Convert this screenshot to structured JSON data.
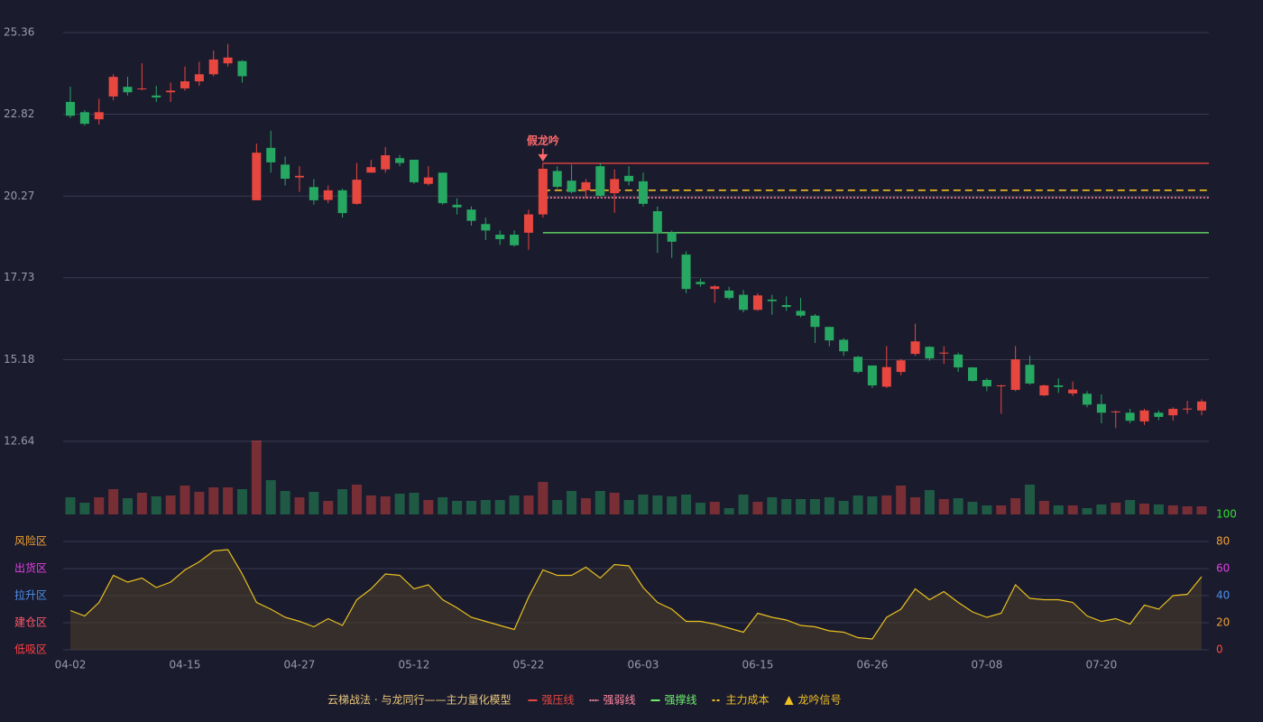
{
  "chart_data": {
    "type": "candlestick",
    "categories": [
      "04-02",
      null,
      null,
      null,
      null,
      null,
      null,
      null,
      "04-15",
      null,
      null,
      null,
      null,
      null,
      null,
      null,
      "04-27",
      null,
      null,
      null,
      null,
      null,
      null,
      null,
      "05-12",
      null,
      null,
      null,
      null,
      null,
      null,
      null,
      "05-22",
      null,
      null,
      null,
      null,
      null,
      null,
      null,
      "06-03",
      null,
      null,
      null,
      null,
      null,
      null,
      null,
      "06-15",
      null,
      null,
      null,
      null,
      null,
      null,
      null,
      "06-26",
      null,
      null,
      null,
      null,
      null,
      null,
      null,
      "07-08",
      null,
      null,
      null,
      null,
      null,
      null,
      null,
      "07-20",
      null,
      null,
      null,
      null,
      null,
      null,
      null
    ],
    "open": [
      23.2,
      22.88,
      22.66,
      23.37,
      23.67,
      23.6,
      23.4,
      23.5,
      23.62,
      23.84,
      24.06,
      24.4,
      24.47,
      20.14,
      21.77,
      21.25,
      20.85,
      20.55,
      20.15,
      20.45,
      20.03,
      21.0,
      21.1,
      21.45,
      21.4,
      20.65,
      21.0,
      20.0,
      19.85,
      19.4,
      19.07,
      19.07,
      19.13,
      19.7,
      21.05,
      20.75,
      20.45,
      21.2,
      20.36,
      20.9,
      20.73,
      19.8,
      19.13,
      18.45,
      17.6,
      17.38,
      17.33,
      17.2,
      16.73,
      17.05,
      16.88,
      16.7,
      16.55,
      16.2,
      15.8,
      15.27,
      15.0,
      14.34,
      14.8,
      15.36,
      15.58,
      15.37,
      15.34,
      14.94,
      14.55,
      14.36,
      14.24,
      15.02,
      14.07,
      14.38,
      14.13,
      14.12,
      13.8,
      13.55,
      13.53,
      13.26,
      13.53,
      13.45,
      13.63,
      13.6
    ],
    "high": [
      23.67,
      22.94,
      23.3,
      24.06,
      23.98,
      24.4,
      23.7,
      23.8,
      24.3,
      24.45,
      24.8,
      25.0,
      24.5,
      21.9,
      22.3,
      21.5,
      21.2,
      20.8,
      20.6,
      20.5,
      21.3,
      21.4,
      21.8,
      21.55,
      21.4,
      21.2,
      21.0,
      20.2,
      19.95,
      19.6,
      19.2,
      19.2,
      19.85,
      21.3,
      21.2,
      21.25,
      20.8,
      21.3,
      21.1,
      21.2,
      21.0,
      19.95,
      19.2,
      18.55,
      17.7,
      17.5,
      17.45,
      17.35,
      17.25,
      17.2,
      17.15,
      17.1,
      16.6,
      16.2,
      15.85,
      15.3,
      15.0,
      15.6,
      15.2,
      16.3,
      15.6,
      15.6,
      15.4,
      14.95,
      14.6,
      14.4,
      15.6,
      15.3,
      14.4,
      14.6,
      14.5,
      14.2,
      14.1,
      13.6,
      13.65,
      13.65,
      13.6,
      13.7,
      13.9,
      13.95
    ],
    "low": [
      22.7,
      22.46,
      22.5,
      23.25,
      23.4,
      23.56,
      23.2,
      23.2,
      23.55,
      23.7,
      24.0,
      24.3,
      23.8,
      20.14,
      21.0,
      20.6,
      20.4,
      20.0,
      20.05,
      19.6,
      20.0,
      21.0,
      21.0,
      21.2,
      20.65,
      20.6,
      20.0,
      19.7,
      19.35,
      18.9,
      18.75,
      18.7,
      18.6,
      19.6,
      20.5,
      20.35,
      20.2,
      20.25,
      19.75,
      20.6,
      19.95,
      18.5,
      18.35,
      17.25,
      17.45,
      16.95,
      17.05,
      16.65,
      16.7,
      16.58,
      16.7,
      16.5,
      15.7,
      15.6,
      15.3,
      14.75,
      14.3,
      14.3,
      14.7,
      15.3,
      15.15,
      15.05,
      14.8,
      14.5,
      14.2,
      13.5,
      14.2,
      14.4,
      14.05,
      14.15,
      14.05,
      13.7,
      13.2,
      13.05,
      13.2,
      13.15,
      13.3,
      13.28,
      13.5,
      13.45
    ],
    "close": [
      22.77,
      22.52,
      22.88,
      23.98,
      23.5,
      23.62,
      23.34,
      23.55,
      23.84,
      24.06,
      24.52,
      24.58,
      24.0,
      21.62,
      21.32,
      20.81,
      20.9,
      20.14,
      20.45,
      19.74,
      20.78,
      21.17,
      21.54,
      21.3,
      20.7,
      20.85,
      20.05,
      19.92,
      19.5,
      19.2,
      18.93,
      18.74,
      19.7,
      21.12,
      20.56,
      20.4,
      20.7,
      20.28,
      20.8,
      20.73,
      20.03,
      19.13,
      18.85,
      17.38,
      17.53,
      17.46,
      17.1,
      16.73,
      17.18,
      17.0,
      16.82,
      16.55,
      16.2,
      15.78,
      15.44,
      14.8,
      14.38,
      14.95,
      15.16,
      15.75,
      15.22,
      15.4,
      14.94,
      14.52,
      14.35,
      14.38,
      15.19,
      14.44,
      14.38,
      14.33,
      14.25,
      13.78,
      13.53,
      13.57,
      13.28,
      13.6,
      13.4,
      13.65,
      13.66,
      13.88
    ],
    "volume": [
      19,
      13,
      19,
      28,
      18,
      24,
      20,
      21,
      32,
      25,
      30,
      30,
      28,
      82,
      38,
      26,
      19,
      25,
      15,
      28,
      33,
      21,
      20,
      23,
      24,
      16,
      19,
      15,
      15,
      16,
      16,
      21,
      21,
      36,
      16,
      26,
      18,
      26,
      24,
      16,
      22,
      21,
      20,
      22,
      13,
      14,
      7,
      22,
      14,
      19,
      17,
      17,
      17,
      19,
      15,
      21,
      20,
      21,
      32,
      19,
      27,
      17,
      18,
      14,
      10,
      10,
      18,
      33,
      15,
      10,
      10,
      7,
      11,
      13,
      16,
      12,
      11,
      10,
      9,
      9
    ],
    "ylim": [
      12.64,
      25.36
    ],
    "yticks": [
      12.64,
      15.18,
      17.73,
      20.27,
      22.82,
      25.36
    ],
    "grid": true,
    "up_color": "#e8473f",
    "down_color": "#26a862",
    "levels": [
      {
        "name": "强压线",
        "value": 21.29,
        "color": "#e8473f",
        "style": "solid"
      },
      {
        "name": "强弱线",
        "value": 20.22,
        "color": "#ff8aa0",
        "style": "dotted"
      },
      {
        "name": "强撑线",
        "value": 19.13,
        "color": "#6cf06c",
        "style": "solid"
      },
      {
        "name": "主力成本",
        "value": 20.45,
        "color": "#f0c020",
        "style": "dashed"
      }
    ],
    "level_start": 33,
    "signal": {
      "name": "龙吟信号",
      "color": "#f0c020",
      "events": [
        {
          "label": "假龙吟",
          "at": 33,
          "color": "#ff6a6a"
        }
      ]
    },
    "legend_title": "云梯战法 · 与龙同行——主力量化模型",
    "indicator": {
      "values": [
        29,
        25,
        35,
        55,
        50,
        53,
        46,
        50,
        59,
        65,
        73,
        74,
        56,
        35,
        30,
        24,
        21,
        17,
        23,
        18,
        37,
        45,
        56,
        55,
        45,
        48,
        37,
        31,
        24,
        21,
        18,
        15,
        39,
        59,
        55,
        55,
        61,
        53,
        63,
        62,
        46,
        35,
        30,
        21,
        21,
        19,
        16,
        13,
        27,
        24,
        22,
        18,
        17,
        14,
        13,
        9,
        8,
        24,
        30,
        45,
        37,
        43,
        35,
        28,
        24,
        27,
        48,
        38,
        37,
        37,
        35,
        25,
        21,
        23,
        19,
        33,
        30,
        40,
        41,
        54
      ],
      "color": "#e8c020",
      "ylim": [
        0,
        100
      ],
      "yticks": [
        0,
        20,
        40,
        60,
        80,
        100
      ],
      "ytick_colors": [
        "#ff4a3a",
        "#f0a030",
        "#4a90e8",
        "#e040e0",
        "#f0a030",
        "#30e030"
      ],
      "zones": [
        {
          "label": "风险区",
          "value": 80,
          "color": "#f0a030"
        },
        {
          "label": "出货区",
          "value": 60,
          "color": "#e040e0"
        },
        {
          "label": "拉升区",
          "value": 40,
          "color": "#4a90e8"
        },
        {
          "label": "建仓区",
          "value": 20,
          "color": "#ff5a6a"
        },
        {
          "label": "低吸区",
          "value": 0,
          "color": "#ff4040"
        }
      ]
    }
  }
}
